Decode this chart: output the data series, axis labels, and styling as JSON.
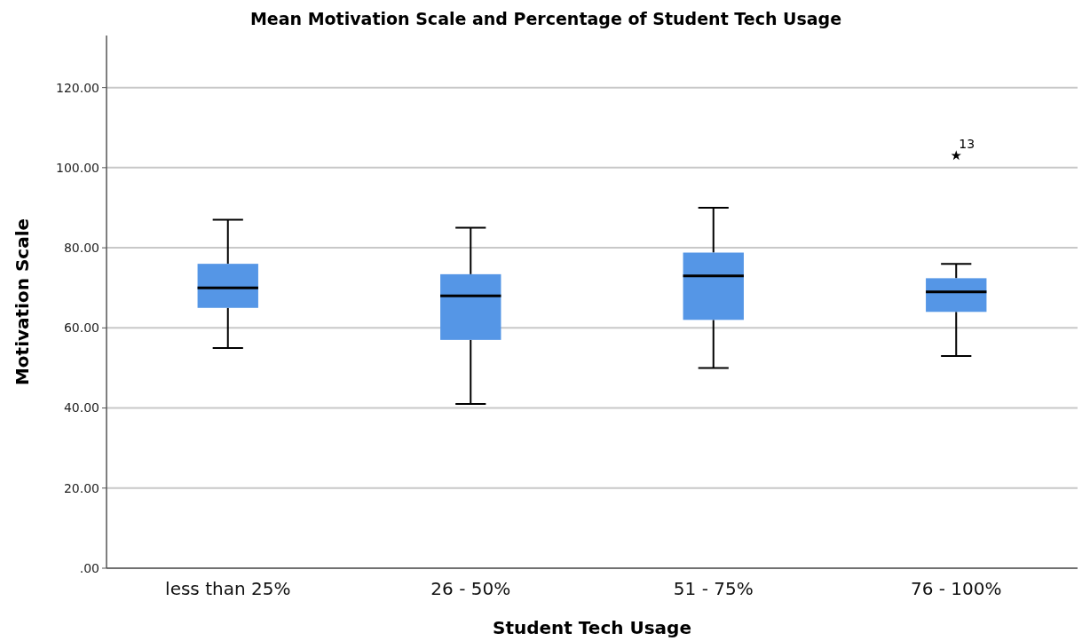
{
  "chart_data": {
    "type": "box",
    "title": "Mean Motivation Scale and Percentage of Student Tech Usage",
    "xlabel": "Student Tech Usage",
    "ylabel": "Motivation Scale",
    "categories": [
      "less than 25%",
      "26 - 50%",
      "51 - 75%",
      "76 - 100%"
    ],
    "series": [
      {
        "color": "#5596e6",
        "boxes": [
          {
            "low": 55,
            "q1": 65,
            "median": 70,
            "q3": 76,
            "high": 87
          },
          {
            "low": 41,
            "q1": 57,
            "median": 68,
            "q3": 73.4,
            "high": 85
          },
          {
            "low": 50,
            "q1": 62,
            "median": 73,
            "q3": 78.8,
            "high": 90
          },
          {
            "low": 53,
            "q1": 64,
            "median": 69,
            "q3": 72.4,
            "high": 76,
            "outliers": [
              103
            ]
          }
        ]
      }
    ],
    "marker": "star",
    "annotations": [
      "13"
    ],
    "ylim": [
      0,
      133
    ],
    "yticks": [
      {
        "value": 0,
        "label": ".00"
      },
      {
        "value": 20,
        "label": "20.00"
      },
      {
        "value": 40,
        "label": "40.00"
      },
      {
        "value": 60,
        "label": "60.00"
      },
      {
        "value": 80,
        "label": "80.00"
      },
      {
        "value": 100,
        "label": "100.00"
      },
      {
        "value": 120,
        "label": "120.00"
      }
    ],
    "grid": "y"
  }
}
